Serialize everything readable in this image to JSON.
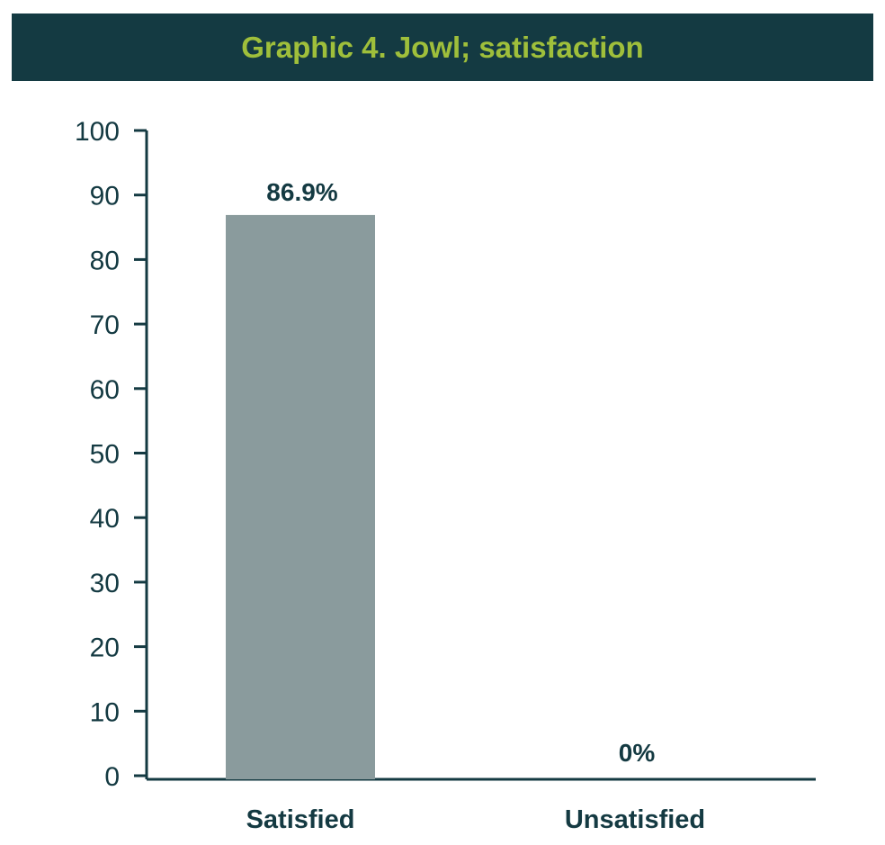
{
  "chart_data": {
    "type": "bar",
    "title": "Graphic 4. Jowl; satisfaction",
    "categories": [
      "Satisfied",
      "Unsatisfied"
    ],
    "values": [
      86.9,
      0
    ],
    "data_labels": [
      "86.9%",
      "0%"
    ],
    "ylim": [
      0,
      100
    ],
    "yticks": [
      0,
      10,
      20,
      30,
      40,
      50,
      60,
      70,
      80,
      90,
      100
    ],
    "xlabel": "",
    "ylabel": "",
    "grid": false,
    "colors": {
      "bar": "#8a9b9d",
      "axis": "#143a42",
      "text": "#143a42",
      "title_bg": "#143a42",
      "title_text": "#9fbf3b"
    }
  }
}
